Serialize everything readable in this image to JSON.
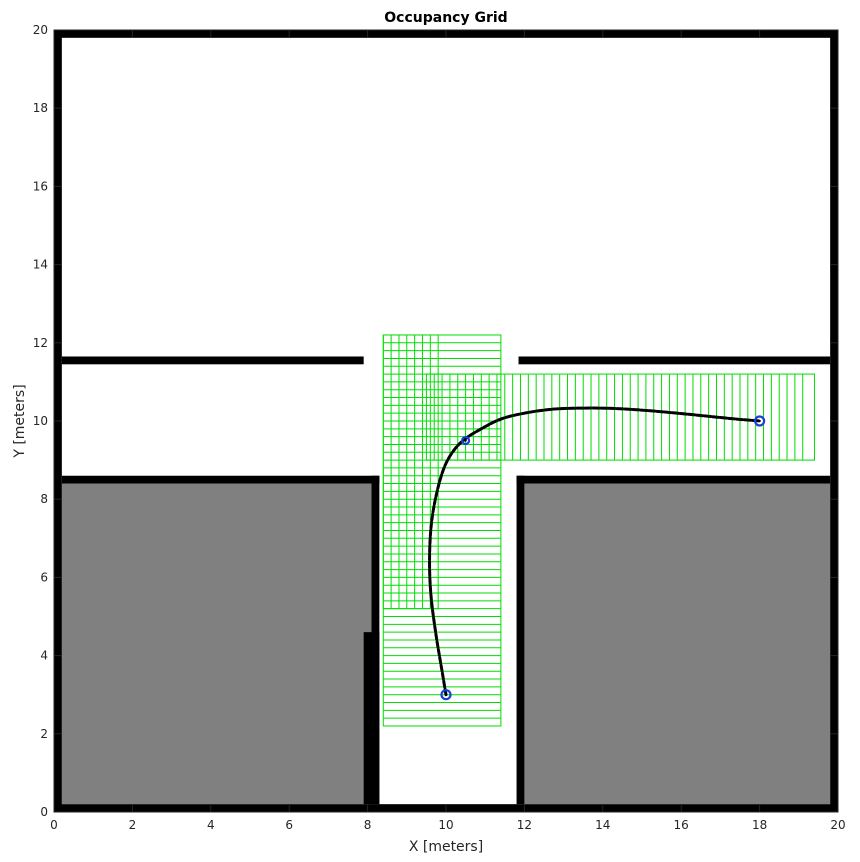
{
  "chart_data": {
    "type": "occupancy_grid",
    "title": "Occupancy Grid",
    "xlabel": "X [meters]",
    "ylabel": "Y [meters]",
    "xlim": [
      0,
      20
    ],
    "ylim": [
      0,
      20
    ],
    "xticks": [
      0,
      2,
      4,
      6,
      8,
      10,
      12,
      14,
      16,
      18,
      20
    ],
    "yticks": [
      0,
      2,
      4,
      6,
      8,
      10,
      12,
      14,
      16,
      18,
      20
    ],
    "grid": false,
    "colors": {
      "free": "#ffffff",
      "occupied": "#000000",
      "unknown": "#808080",
      "search_boxes": "#00dd00",
      "path": "#000000",
      "waypoint": "#1a3fd6"
    },
    "unknown_regions": [
      {
        "x": [
          0.2,
          8.1
        ],
        "y": [
          0.2,
          8.4
        ]
      },
      {
        "x": [
          12.0,
          19.8
        ],
        "y": [
          0.2,
          8.4
        ]
      }
    ],
    "walls": [
      {
        "x": [
          0,
          20
        ],
        "y": [
          19.8,
          20.0
        ]
      },
      {
        "x": [
          0,
          0.2
        ],
        "y": [
          0,
          20
        ]
      },
      {
        "x": [
          19.8,
          20.0
        ],
        "y": [
          0,
          20
        ]
      },
      {
        "x": [
          0,
          20
        ],
        "y": [
          0,
          0.2
        ]
      },
      {
        "x": [
          0.2,
          7.9
        ],
        "y": [
          11.45,
          11.65
        ]
      },
      {
        "x": [
          11.85,
          19.8
        ],
        "y": [
          11.45,
          11.65
        ]
      },
      {
        "x": [
          0.2,
          8.3
        ],
        "y": [
          8.4,
          8.6
        ]
      },
      {
        "x": [
          8.1,
          8.3
        ],
        "y": [
          0.2,
          8.6
        ]
      },
      {
        "x": [
          7.9,
          8.3
        ],
        "y": [
          0.2,
          4.6
        ]
      },
      {
        "x": [
          11.8,
          19.8
        ],
        "y": [
          8.4,
          8.6
        ]
      },
      {
        "x": [
          11.8,
          12.0
        ],
        "y": [
          0.2,
          8.6
        ]
      }
    ],
    "search_regions": [
      {
        "x_range": [
          8.4,
          11.4
        ],
        "y_range": [
          2.2,
          12.2
        ],
        "spacing": 0.2,
        "orientation": "horizontal"
      },
      {
        "x_range": [
          8.4,
          9.8
        ],
        "y_range": [
          5.2,
          12.2
        ],
        "spacing": 0.2,
        "orientation": "vertical"
      },
      {
        "x_range": [
          9.5,
          19.4
        ],
        "y_range": [
          9.0,
          11.2
        ],
        "spacing": 0.2,
        "orientation": "vertical"
      }
    ],
    "path": {
      "x": [
        10.0,
        9.9,
        9.75,
        9.62,
        9.58,
        9.62,
        9.75,
        9.95,
        10.2,
        10.5,
        10.9,
        11.4,
        12.0,
        12.7,
        13.5,
        14.3,
        15.1,
        15.9,
        16.7,
        17.4,
        18.0
      ],
      "y": [
        3.0,
        3.6,
        4.5,
        5.5,
        6.4,
        7.3,
        8.1,
        8.8,
        9.25,
        9.55,
        9.8,
        10.05,
        10.2,
        10.3,
        10.33,
        10.32,
        10.27,
        10.2,
        10.12,
        10.05,
        10.0
      ]
    },
    "waypoints": [
      {
        "x": 10.0,
        "y": 3.0,
        "size": "large"
      },
      {
        "x": 10.5,
        "y": 9.5,
        "size": "small"
      },
      {
        "x": 18.0,
        "y": 10.0,
        "size": "large"
      }
    ]
  }
}
